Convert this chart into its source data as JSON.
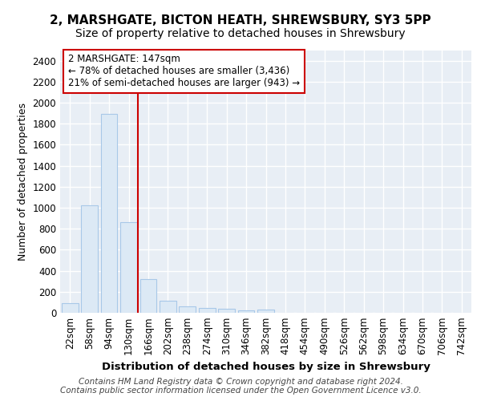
{
  "title1": "2, MARSHGATE, BICTON HEATH, SHREWSBURY, SY3 5PP",
  "title2": "Size of property relative to detached houses in Shrewsbury",
  "xlabel": "Distribution of detached houses by size in Shrewsbury",
  "ylabel": "Number of detached properties",
  "categories": [
    "22sqm",
    "58sqm",
    "94sqm",
    "130sqm",
    "166sqm",
    "202sqm",
    "238sqm",
    "274sqm",
    "310sqm",
    "346sqm",
    "382sqm",
    "418sqm",
    "454sqm",
    "490sqm",
    "526sqm",
    "562sqm",
    "598sqm",
    "634sqm",
    "670sqm",
    "706sqm",
    "742sqm"
  ],
  "values": [
    90,
    1020,
    1890,
    860,
    320,
    115,
    58,
    47,
    35,
    20,
    28,
    0,
    0,
    0,
    0,
    0,
    0,
    0,
    0,
    0,
    0
  ],
  "bar_color": "#dce9f5",
  "bar_edge_color": "#a8c8e8",
  "bar_width": 0.85,
  "vline_x": 3.47,
  "vline_color": "#cc0000",
  "annotation_text": "2 MARSHGATE: 147sqm\n← 78% of detached houses are smaller (3,436)\n21% of semi-detached houses are larger (943) →",
  "annotation_box_color": "#ffffff",
  "annotation_box_edge": "#cc0000",
  "ylim": [
    0,
    2500
  ],
  "yticks": [
    0,
    200,
    400,
    600,
    800,
    1000,
    1200,
    1400,
    1600,
    1800,
    2000,
    2200,
    2400
  ],
  "footer": "Contains HM Land Registry data © Crown copyright and database right 2024.\nContains public sector information licensed under the Open Government Licence v3.0.",
  "bg_color": "#ffffff",
  "plot_bg_color": "#e8eef5",
  "grid_color": "#ffffff",
  "title1_fontsize": 11,
  "title2_fontsize": 10,
  "xlabel_fontsize": 9.5,
  "ylabel_fontsize": 9,
  "tick_fontsize": 8.5,
  "annotation_fontsize": 8.5,
  "footer_fontsize": 7.5
}
